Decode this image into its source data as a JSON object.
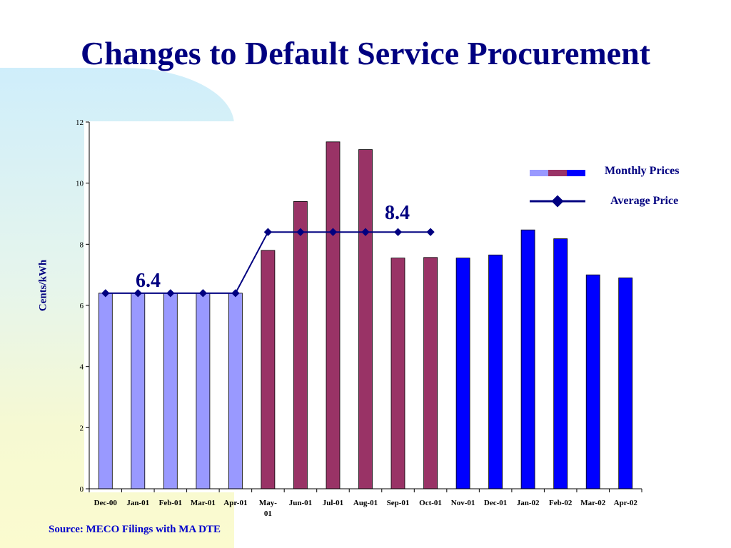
{
  "title": "Changes to Default Service Procurement",
  "source": "Source:  MECO Filings with MA DTE",
  "legend": {
    "monthly": "Monthly Prices",
    "average": "Average Price",
    "position": "right"
  },
  "callouts": {
    "first_avg": "6.4",
    "second_avg": "8.4"
  },
  "chart_data": {
    "type": "bar",
    "title": "Changes to Default Service Procurement",
    "ylabel": "Cents/kWh",
    "xlabel": "",
    "ylim": [
      0,
      12
    ],
    "yticks": [
      0,
      2,
      4,
      6,
      8,
      10,
      12
    ],
    "grid": false,
    "categories": [
      "Dec-00",
      "Jan-01",
      "Feb-01",
      "Mar-01",
      "Apr-01",
      "May-01",
      "Jun-01",
      "Jul-01",
      "Aug-01",
      "Sep-01",
      "Oct-01",
      "Nov-01",
      "Dec-01",
      "Jan-02",
      "Feb-02",
      "Mar-02",
      "Apr-02"
    ],
    "colors": {
      "period1": "#9999ff",
      "period2": "#993366",
      "period3": "#0000ff",
      "avg_line": "#000080"
    },
    "series": [
      {
        "name": "Monthly Prices",
        "values": [
          6.4,
          6.4,
          6.4,
          6.4,
          6.4,
          7.8,
          9.4,
          11.35,
          11.1,
          7.55,
          7.57,
          7.55,
          7.65,
          8.47,
          8.18,
          7.0,
          6.9
        ],
        "groups": [
          1,
          1,
          1,
          1,
          1,
          2,
          2,
          2,
          2,
          2,
          2,
          3,
          3,
          3,
          3,
          3,
          3
        ]
      },
      {
        "name": "Average Price",
        "values": [
          6.4,
          6.4,
          6.4,
          6.4,
          6.4,
          8.4,
          8.4,
          8.4,
          8.4,
          8.4,
          8.4,
          null,
          null,
          null,
          null,
          null,
          null
        ]
      }
    ]
  }
}
